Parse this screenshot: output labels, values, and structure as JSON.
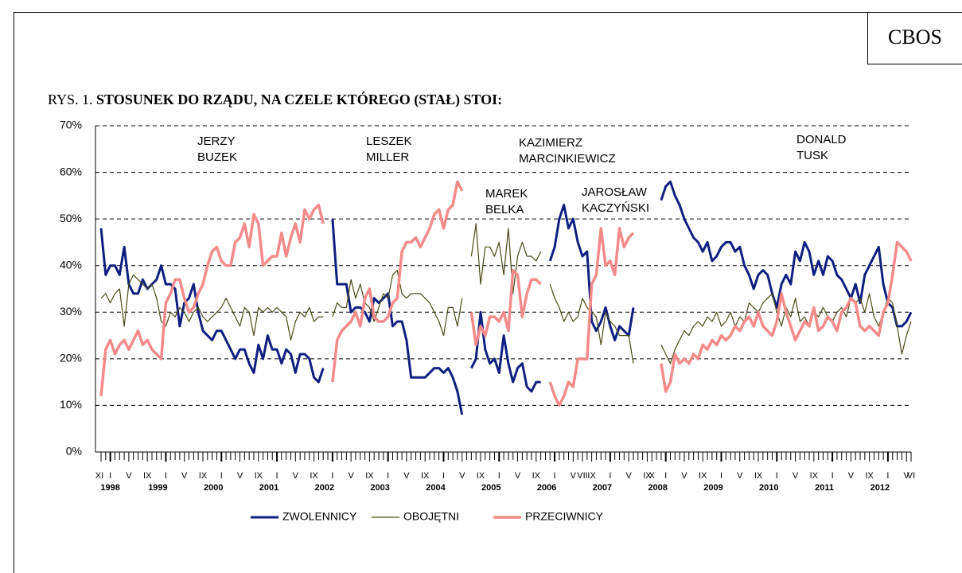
{
  "header": {
    "brand": "CBOS",
    "label": "RYS. 1.",
    "title": "STOSUNEK DO RZĄDU, NA CZELE KTÓREGO (STAŁ) STOI:"
  },
  "chart_data": {
    "type": "line",
    "ylim": [
      0,
      70
    ],
    "yticks": [
      {
        "value": 0,
        "label": "0%"
      },
      {
        "value": 10,
        "label": "10%"
      },
      {
        "value": 20,
        "label": "20%"
      },
      {
        "value": 30,
        "label": "30%"
      },
      {
        "value": 40,
        "label": "40%"
      },
      {
        "value": 50,
        "label": "50%"
      },
      {
        "value": 60,
        "label": "60%"
      },
      {
        "value": 70,
        "label": "70%"
      }
    ],
    "grid": true,
    "annotations": [
      {
        "lines": [
          "JERZY",
          "BUZEK"
        ]
      },
      {
        "lines": [
          "LESZEK",
          "MILLER"
        ]
      },
      {
        "lines": [
          "MAREK",
          "BELKA"
        ]
      },
      {
        "lines": [
          "KAZIMIERZ",
          "MARCINKIEWICZ"
        ]
      },
      {
        "lines": [
          "JAROSŁAW",
          "KACZYŃSKI"
        ]
      },
      {
        "lines": [
          "DONALD",
          "TUSK"
        ]
      }
    ],
    "categories": [
      "XI",
      null,
      "I",
      null,
      null,
      null,
      "V",
      null,
      null,
      null,
      "IX",
      null,
      null,
      null,
      "I",
      null,
      null,
      null,
      "V",
      null,
      null,
      null,
      "IX",
      null,
      null,
      null,
      "I",
      null,
      null,
      null,
      "V",
      null,
      null,
      null,
      "IX",
      null,
      null,
      null,
      "I",
      null,
      null,
      null,
      "V",
      null,
      null,
      null,
      "IX",
      null,
      null,
      null,
      "I",
      null,
      null,
      null,
      "V",
      null,
      null,
      null,
      "IX",
      null,
      null,
      null,
      "I",
      null,
      null,
      null,
      "V",
      null,
      null,
      null,
      "IX",
      null,
      null,
      null,
      "I",
      null,
      null,
      null,
      "V",
      null,
      null,
      null,
      "IX",
      null,
      null,
      null,
      "I",
      null,
      null,
      null,
      "V",
      null,
      null,
      null,
      "IX",
      null,
      null,
      null,
      "I",
      null,
      null,
      null,
      "V",
      null,
      "VII",
      null,
      "IX",
      null,
      null,
      null,
      "I",
      null,
      null,
      null,
      "V",
      null,
      null,
      null,
      "IX",
      "X",
      null,
      null,
      "I",
      null,
      null,
      null,
      "V",
      null,
      null,
      null,
      "IX",
      null,
      null,
      null,
      "I",
      null,
      null,
      null,
      "V",
      null,
      null,
      null,
      "IX",
      null,
      null,
      null,
      "I",
      null,
      null,
      null,
      "V",
      null,
      null,
      null,
      "IX",
      null,
      null,
      null,
      "I",
      null,
      null,
      null,
      "V",
      null,
      null,
      null,
      "IX",
      null,
      null,
      null,
      "I",
      null,
      null,
      null,
      "V",
      "VI"
    ],
    "years": [
      null,
      null,
      "1998",
      null,
      null,
      null,
      null,
      null,
      null,
      null,
      null,
      null,
      null,
      null,
      "1999",
      null,
      null,
      null,
      null,
      null,
      null,
      null,
      null,
      null,
      null,
      null,
      "2000",
      null,
      null,
      null,
      null,
      null,
      null,
      null,
      null,
      null,
      null,
      null,
      "2001",
      null,
      null,
      null,
      null,
      null,
      null,
      null,
      null,
      null,
      null,
      null,
      "2002",
      null,
      null,
      null,
      null,
      null,
      null,
      null,
      null,
      null,
      null,
      null,
      "2003",
      null,
      null,
      null,
      null,
      null,
      null,
      null,
      null,
      null,
      null,
      null,
      "2004",
      null,
      null,
      null,
      null,
      null,
      null,
      null,
      null,
      null,
      null,
      null,
      "2005",
      null,
      null,
      null,
      null,
      null,
      null,
      null,
      null,
      null,
      null,
      null,
      "2006",
      null,
      null,
      null,
      null,
      null,
      null,
      null,
      null,
      null,
      null,
      null,
      "2007",
      null,
      null,
      null,
      null,
      null,
      null,
      null,
      null,
      null,
      null,
      null,
      "2008",
      null,
      null,
      null,
      null,
      null,
      null,
      null,
      null,
      null,
      null,
      null,
      "2009",
      null,
      null,
      null,
      null,
      null,
      null,
      null,
      null,
      null,
      null,
      null,
      "2010",
      null,
      null,
      null,
      null,
      null,
      null,
      null,
      null,
      null,
      null,
      null,
      "2011",
      null,
      null,
      null,
      null,
      null,
      null,
      null,
      null,
      null,
      null,
      null,
      "2012",
      null,
      null,
      null,
      null,
      null
    ],
    "series": [
      {
        "name": "ZWOLENNICY",
        "color": "#0f1f80",
        "width": 3,
        "values": [
          48,
          38,
          40,
          40,
          38,
          44,
          36,
          34,
          34,
          37,
          35,
          36,
          37,
          40,
          36,
          36,
          35,
          27,
          32,
          33,
          36,
          30,
          26,
          25,
          24,
          26,
          26,
          24,
          22,
          20,
          22,
          22,
          19,
          17,
          23,
          20,
          25,
          22,
          22,
          19,
          22,
          21,
          17,
          21,
          21,
          20,
          16,
          15,
          18,
          null,
          50,
          36,
          36,
          36,
          30,
          31,
          31,
          30,
          28,
          33,
          32,
          33,
          34,
          27,
          28,
          28,
          24,
          16,
          16,
          16,
          16,
          17,
          18,
          18,
          17,
          18,
          16,
          13,
          8,
          null,
          18,
          20,
          30,
          22,
          19,
          20,
          17,
          25,
          19,
          15,
          18,
          19,
          14,
          13,
          15,
          15,
          null,
          41,
          44,
          50,
          53,
          48,
          50,
          45,
          42,
          43,
          28,
          26,
          28,
          31,
          27,
          24,
          27,
          26,
          25,
          31,
          null,
          null,
          null,
          null,
          null,
          54,
          57,
          58,
          55,
          53,
          50,
          48,
          46,
          45,
          43,
          45,
          41,
          42,
          44,
          45,
          45,
          43,
          44,
          40,
          38,
          35,
          38,
          39,
          38,
          34,
          31,
          36,
          38,
          36,
          43,
          41,
          45,
          43,
          38,
          41,
          38,
          42,
          41,
          38,
          37,
          35,
          33,
          36,
          32,
          38,
          40,
          42,
          44,
          36,
          32,
          31,
          27,
          27,
          28,
          30
        ]
      },
      {
        "name": "OBOJĘTNI",
        "color": "#4a4a14",
        "width": 1.2,
        "values": [
          33,
          34,
          32,
          34,
          35,
          27,
          36,
          38,
          37,
          36,
          35,
          36,
          33,
          28,
          27,
          30,
          29,
          31,
          30,
          28,
          30,
          31,
          29,
          28,
          29,
          30,
          31,
          33,
          31,
          29,
          27,
          31,
          30,
          25,
          31,
          30,
          31,
          30,
          31,
          30,
          29,
          24,
          28,
          30,
          29,
          31,
          28,
          29,
          29,
          null,
          29,
          32,
          31,
          31,
          37,
          33,
          36,
          32,
          31,
          28,
          31,
          34,
          33,
          38,
          39,
          34,
          33,
          34,
          34,
          34,
          33,
          32,
          30,
          28,
          25,
          31,
          31,
          27,
          33,
          null,
          42,
          49,
          36,
          44,
          44,
          42,
          45,
          38,
          48,
          34,
          42,
          45,
          42,
          42,
          41,
          43,
          null,
          36,
          33,
          31,
          28,
          30,
          28,
          29,
          33,
          31,
          30,
          29,
          23,
          30,
          28,
          27,
          25,
          25,
          25,
          19,
          null,
          null,
          null,
          null,
          null,
          23,
          21,
          19,
          22,
          24,
          26,
          25,
          27,
          28,
          27,
          29,
          28,
          30,
          27,
          28,
          30,
          27,
          29,
          28,
          32,
          31,
          30,
          32,
          33,
          34,
          30,
          27,
          31,
          29,
          33,
          28,
          29,
          27,
          30,
          29,
          31,
          29,
          28,
          30,
          31,
          29,
          33,
          32,
          33,
          30,
          34,
          29,
          27,
          30,
          33,
          32,
          27,
          21,
          25,
          28
        ]
      },
      {
        "name": "PRZECIWNICY",
        "color": "#f58a8a",
        "width": 3.5,
        "values": [
          12,
          22,
          24,
          21,
          23,
          24,
          22,
          24,
          26,
          23,
          24,
          22,
          21,
          20,
          32,
          34,
          37,
          37,
          33,
          30,
          31,
          34,
          36,
          40,
          43,
          44,
          41,
          40,
          40,
          45,
          46,
          49,
          44,
          51,
          49,
          40,
          41,
          42,
          42,
          47,
          42,
          46,
          49,
          45,
          52,
          50,
          52,
          53,
          49,
          null,
          15,
          24,
          26,
          27,
          28,
          30,
          27,
          33,
          35,
          29,
          28,
          28,
          29,
          32,
          33,
          43,
          45,
          45,
          46,
          44,
          46,
          48,
          51,
          52,
          48,
          52,
          53,
          58,
          56,
          null,
          30,
          23,
          27,
          25,
          29,
          29,
          28,
          30,
          26,
          39,
          38,
          29,
          34,
          37,
          37,
          36,
          null,
          15,
          12,
          10,
          12,
          15,
          14,
          20,
          20,
          20,
          36,
          38,
          48,
          40,
          41,
          38,
          48,
          44,
          46,
          47,
          null,
          null,
          null,
          null,
          null,
          19,
          13,
          15,
          21,
          19,
          20,
          19,
          21,
          20,
          23,
          22,
          24,
          23,
          25,
          24,
          25,
          27,
          26,
          28,
          29,
          27,
          30,
          27,
          26,
          25,
          28,
          34,
          30,
          27,
          24,
          26,
          28,
          27,
          31,
          26,
          27,
          29,
          28,
          26,
          30,
          31,
          33,
          32,
          27,
          26,
          27,
          26,
          25,
          30,
          32,
          38,
          45,
          44,
          43,
          41
        ]
      }
    ]
  }
}
